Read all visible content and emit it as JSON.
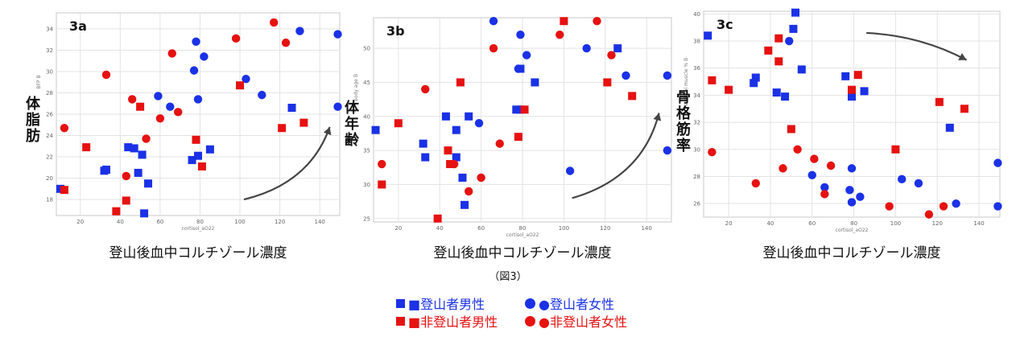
{
  "colors": {
    "climber": "#1a31e6",
    "non_climber": "#e61111"
  },
  "caption": "（図3）",
  "legend": [
    {
      "label": "■登山者男性",
      "color": "#1a31e6",
      "shape": "square"
    },
    {
      "label": "●登山者女性",
      "color": "#1a31e6",
      "shape": "circle"
    },
    {
      "label": "■非登山者男性",
      "color": "#e61111",
      "shape": "square"
    },
    {
      "label": "●非登山者女性",
      "color": "#e61111",
      "shape": "circle"
    }
  ],
  "chart_data": [
    {
      "type": "scatter",
      "panel_label": "3a",
      "ylabel_jp": "体脂肪",
      "xlabel_jp": "登山後血中コルチゾール濃度",
      "xlabel": "cortisol_aO22",
      "ylabel": "BFP B",
      "xlim": [
        8,
        150
      ],
      "ylim": [
        16.5,
        35.5
      ],
      "xticks": [
        20,
        40,
        60,
        80,
        100,
        120,
        140
      ],
      "yticks": [
        18,
        20,
        22,
        24,
        26,
        28,
        30,
        32,
        34
      ],
      "trend_arrow": true,
      "series": [
        {
          "group": "climber_male",
          "points": [
            [
              10,
              19
            ],
            [
              32,
              20.7
            ],
            [
              33,
              20.8
            ],
            [
              44,
              22.9
            ],
            [
              47,
              22.8
            ],
            [
              49,
              20.5
            ],
            [
              51,
              22.2
            ],
            [
              52,
              16.7
            ],
            [
              54,
              19.5
            ],
            [
              76,
              21.7
            ],
            [
              79,
              22.1
            ],
            [
              85,
              22.7
            ],
            [
              126,
              26.6
            ]
          ]
        },
        {
          "group": "climber_female",
          "points": [
            [
              59,
              27.7
            ],
            [
              65,
              26.7
            ],
            [
              77,
              30.1
            ],
            [
              78,
              32.8
            ],
            [
              79,
              27.4
            ],
            [
              82,
              31.4
            ],
            [
              103,
              29.3
            ],
            [
              111,
              27.8
            ],
            [
              130,
              33.8
            ],
            [
              149,
              33.5
            ],
            [
              149,
              26.7
            ]
          ]
        },
        {
          "group": "non_climber_male",
          "points": [
            [
              12,
              18.9
            ],
            [
              23,
              22.9
            ],
            [
              38,
              16.9
            ],
            [
              43,
              17.9
            ],
            [
              50,
              26.7
            ],
            [
              78,
              23.6
            ],
            [
              81,
              21.1
            ],
            [
              100,
              28.7
            ],
            [
              121,
              24.7
            ],
            [
              132,
              25.2
            ]
          ]
        },
        {
          "group": "non_climber_female",
          "points": [
            [
              12,
              24.7
            ],
            [
              33,
              29.7
            ],
            [
              43,
              20.2
            ],
            [
              46,
              27.4
            ],
            [
              53,
              23.7
            ],
            [
              60,
              25.6
            ],
            [
              66,
              31.7
            ],
            [
              69,
              26.2
            ],
            [
              98,
              33.1
            ],
            [
              117,
              34.6
            ],
            [
              123,
              32.7
            ]
          ]
        }
      ]
    },
    {
      "type": "scatter",
      "panel_label": "3b",
      "ylabel_jp": "体年齢",
      "xlabel_jp": "登山後血中コルチゾール濃度",
      "xlabel": "cortisol_aO22",
      "ylabel": "body age B",
      "xlim": [
        8,
        152
      ],
      "ylim": [
        24.5,
        54.5
      ],
      "xticks": [
        20,
        40,
        60,
        80,
        100,
        120,
        140
      ],
      "yticks": [
        25,
        30,
        35,
        40,
        45,
        50
      ],
      "trend_arrow": true,
      "series": [
        {
          "group": "climber_male",
          "points": [
            [
              9,
              38
            ],
            [
              32,
              36
            ],
            [
              33,
              34
            ],
            [
              43,
              40
            ],
            [
              48,
              38
            ],
            [
              48,
              34
            ],
            [
              51,
              31
            ],
            [
              52,
              27
            ],
            [
              54,
              40
            ],
            [
              77,
              41
            ],
            [
              79,
              41
            ],
            [
              79,
              47
            ],
            [
              86,
              45
            ],
            [
              126,
              50
            ]
          ]
        },
        {
          "group": "climber_female",
          "points": [
            [
              59,
              39
            ],
            [
              66,
              54
            ],
            [
              78,
              47
            ],
            [
              79,
              52
            ],
            [
              82,
              49
            ],
            [
              103,
              32
            ],
            [
              111,
              50
            ],
            [
              130,
              46
            ],
            [
              150,
              46
            ],
            [
              150,
              35
            ]
          ]
        },
        {
          "group": "non_climber_male",
          "points": [
            [
              12,
              30
            ],
            [
              20,
              39
            ],
            [
              39,
              25
            ],
            [
              44,
              35
            ],
            [
              45,
              33
            ],
            [
              50,
              45
            ],
            [
              78,
              37
            ],
            [
              81,
              41
            ],
            [
              100,
              54
            ],
            [
              121,
              45
            ],
            [
              133,
              43
            ]
          ]
        },
        {
          "group": "non_climber_female",
          "points": [
            [
              12,
              33
            ],
            [
              33,
              44
            ],
            [
              47,
              33
            ],
            [
              54,
              29
            ],
            [
              60,
              31
            ],
            [
              66,
              50
            ],
            [
              69,
              36
            ],
            [
              98,
              52
            ],
            [
              116,
              54
            ],
            [
              123,
              49
            ]
          ]
        }
      ]
    },
    {
      "type": "scatter",
      "panel_label": "3c",
      "ylabel_jp": "骨格筋率",
      "xlabel_jp": "登山後血中コルチゾール濃度",
      "xlabel": "cortisol_aO22",
      "ylabel": "skeletal muscle % B",
      "xlim": [
        8,
        150
      ],
      "ylim": [
        25,
        40.2
      ],
      "xticks": [
        20,
        40,
        60,
        80,
        100,
        120,
        140
      ],
      "yticks": [
        26,
        28,
        30,
        32,
        34,
        36,
        38,
        40
      ],
      "trend_arrow": true,
      "series": [
        {
          "group": "climber_male",
          "points": [
            [
              10,
              38.4
            ],
            [
              32,
              34.9
            ],
            [
              33,
              35.3
            ],
            [
              43,
              34.2
            ],
            [
              47,
              33.9
            ],
            [
              51,
              38.9
            ],
            [
              52,
              40.1
            ],
            [
              55,
              35.9
            ],
            [
              76,
              35.4
            ],
            [
              79,
              33.9
            ],
            [
              85,
              34.3
            ],
            [
              126,
              31.6
            ]
          ]
        },
        {
          "group": "climber_female",
          "points": [
            [
              49,
              38
            ],
            [
              60,
              28.1
            ],
            [
              66,
              27.2
            ],
            [
              78,
              27
            ],
            [
              79,
              28.6
            ],
            [
              79,
              26.1
            ],
            [
              83,
              26.5
            ],
            [
              103,
              27.8
            ],
            [
              111,
              27.5
            ],
            [
              129,
              26
            ],
            [
              149,
              29
            ],
            [
              149,
              25.8
            ]
          ]
        },
        {
          "group": "non_climber_male",
          "points": [
            [
              12,
              35.1
            ],
            [
              20,
              34.4
            ],
            [
              39,
              37.3
            ],
            [
              44,
              38.2
            ],
            [
              44,
              36.5
            ],
            [
              50,
              31.5
            ],
            [
              79,
              34.4
            ],
            [
              82,
              35.5
            ],
            [
              100,
              30
            ],
            [
              121,
              33.5
            ],
            [
              133,
              33
            ]
          ]
        },
        {
          "group": "non_climber_female",
          "points": [
            [
              12,
              29.8
            ],
            [
              33,
              27.5
            ],
            [
              46,
              28.6
            ],
            [
              53,
              30
            ],
            [
              61,
              29.3
            ],
            [
              66,
              26.7
            ],
            [
              69,
              28.8
            ],
            [
              97,
              25.8
            ],
            [
              116,
              25.2
            ],
            [
              123,
              25.8
            ]
          ]
        }
      ]
    }
  ]
}
